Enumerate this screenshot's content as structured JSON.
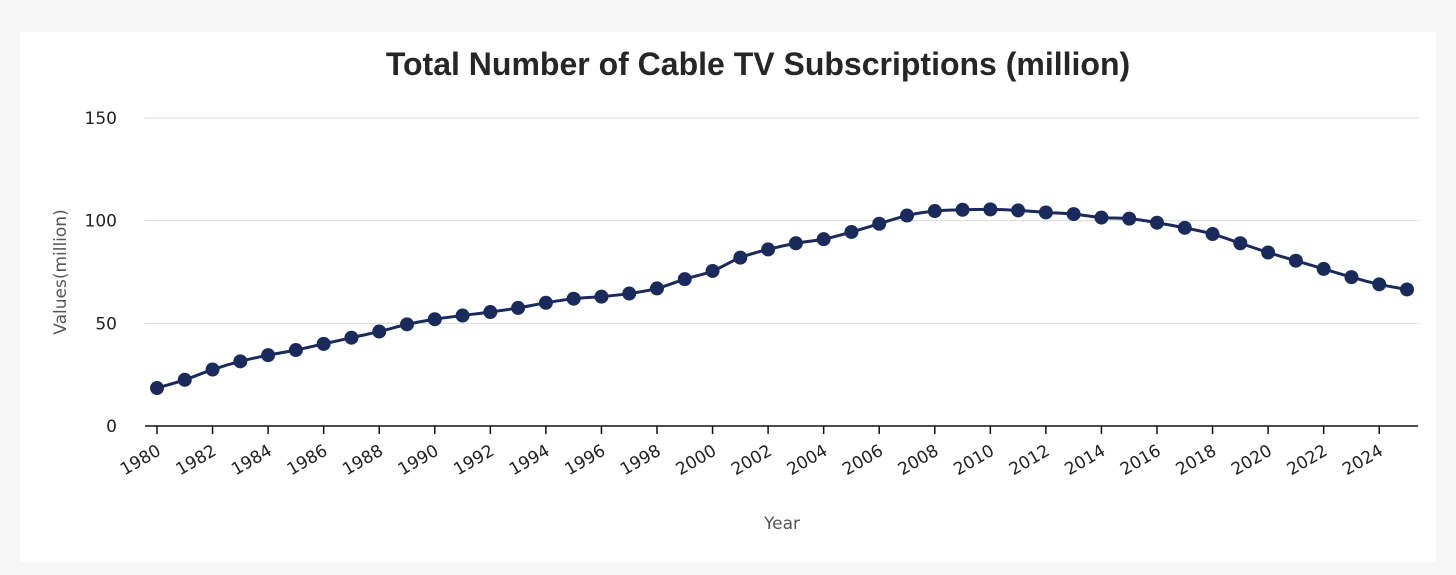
{
  "chart_data": {
    "type": "line",
    "title": "Total Number of Cable TV Subscriptions (million)",
    "xlabel": "Year",
    "ylabel": "Values(million)",
    "ylim": [
      0,
      150
    ],
    "yticks": [
      0,
      50,
      100,
      150
    ],
    "grid": true,
    "legend": "none",
    "x": [
      1980,
      1981,
      1982,
      1983,
      1984,
      1985,
      1986,
      1987,
      1988,
      1989,
      1990,
      1991,
      1992,
      1993,
      1994,
      1995,
      1996,
      1997,
      1998,
      1999,
      2000,
      2001,
      2002,
      2003,
      2004,
      2005,
      2006,
      2007,
      2008,
      2009,
      2010,
      2011,
      2012,
      2013,
      2014,
      2015,
      2016,
      2017,
      2018,
      2019,
      2020,
      2021,
      2022,
      2023,
      2024,
      2025
    ],
    "xticks": [
      1980,
      1982,
      1984,
      1986,
      1988,
      1990,
      1992,
      1994,
      1996,
      1998,
      2000,
      2002,
      2004,
      2006,
      2008,
      2010,
      2012,
      2014,
      2016,
      2018,
      2020,
      2022,
      2024
    ],
    "series": [
      {
        "color": "#1b2a5c",
        "values": [
          18.5,
          22.5,
          27.5,
          31.5,
          34.5,
          37,
          40,
          43,
          46,
          49.5,
          52,
          53.8,
          55.5,
          57.5,
          60,
          62,
          63,
          64.5,
          67,
          71.5,
          75.5,
          82,
          86,
          89,
          91,
          94.5,
          98.5,
          102.5,
          104.7,
          105.3,
          105.5,
          105,
          104,
          103.2,
          101.5,
          101,
          99,
          96.5,
          93.5,
          89,
          84.5,
          80.5,
          76.5,
          72.5,
          69,
          66.5
        ]
      }
    ]
  }
}
